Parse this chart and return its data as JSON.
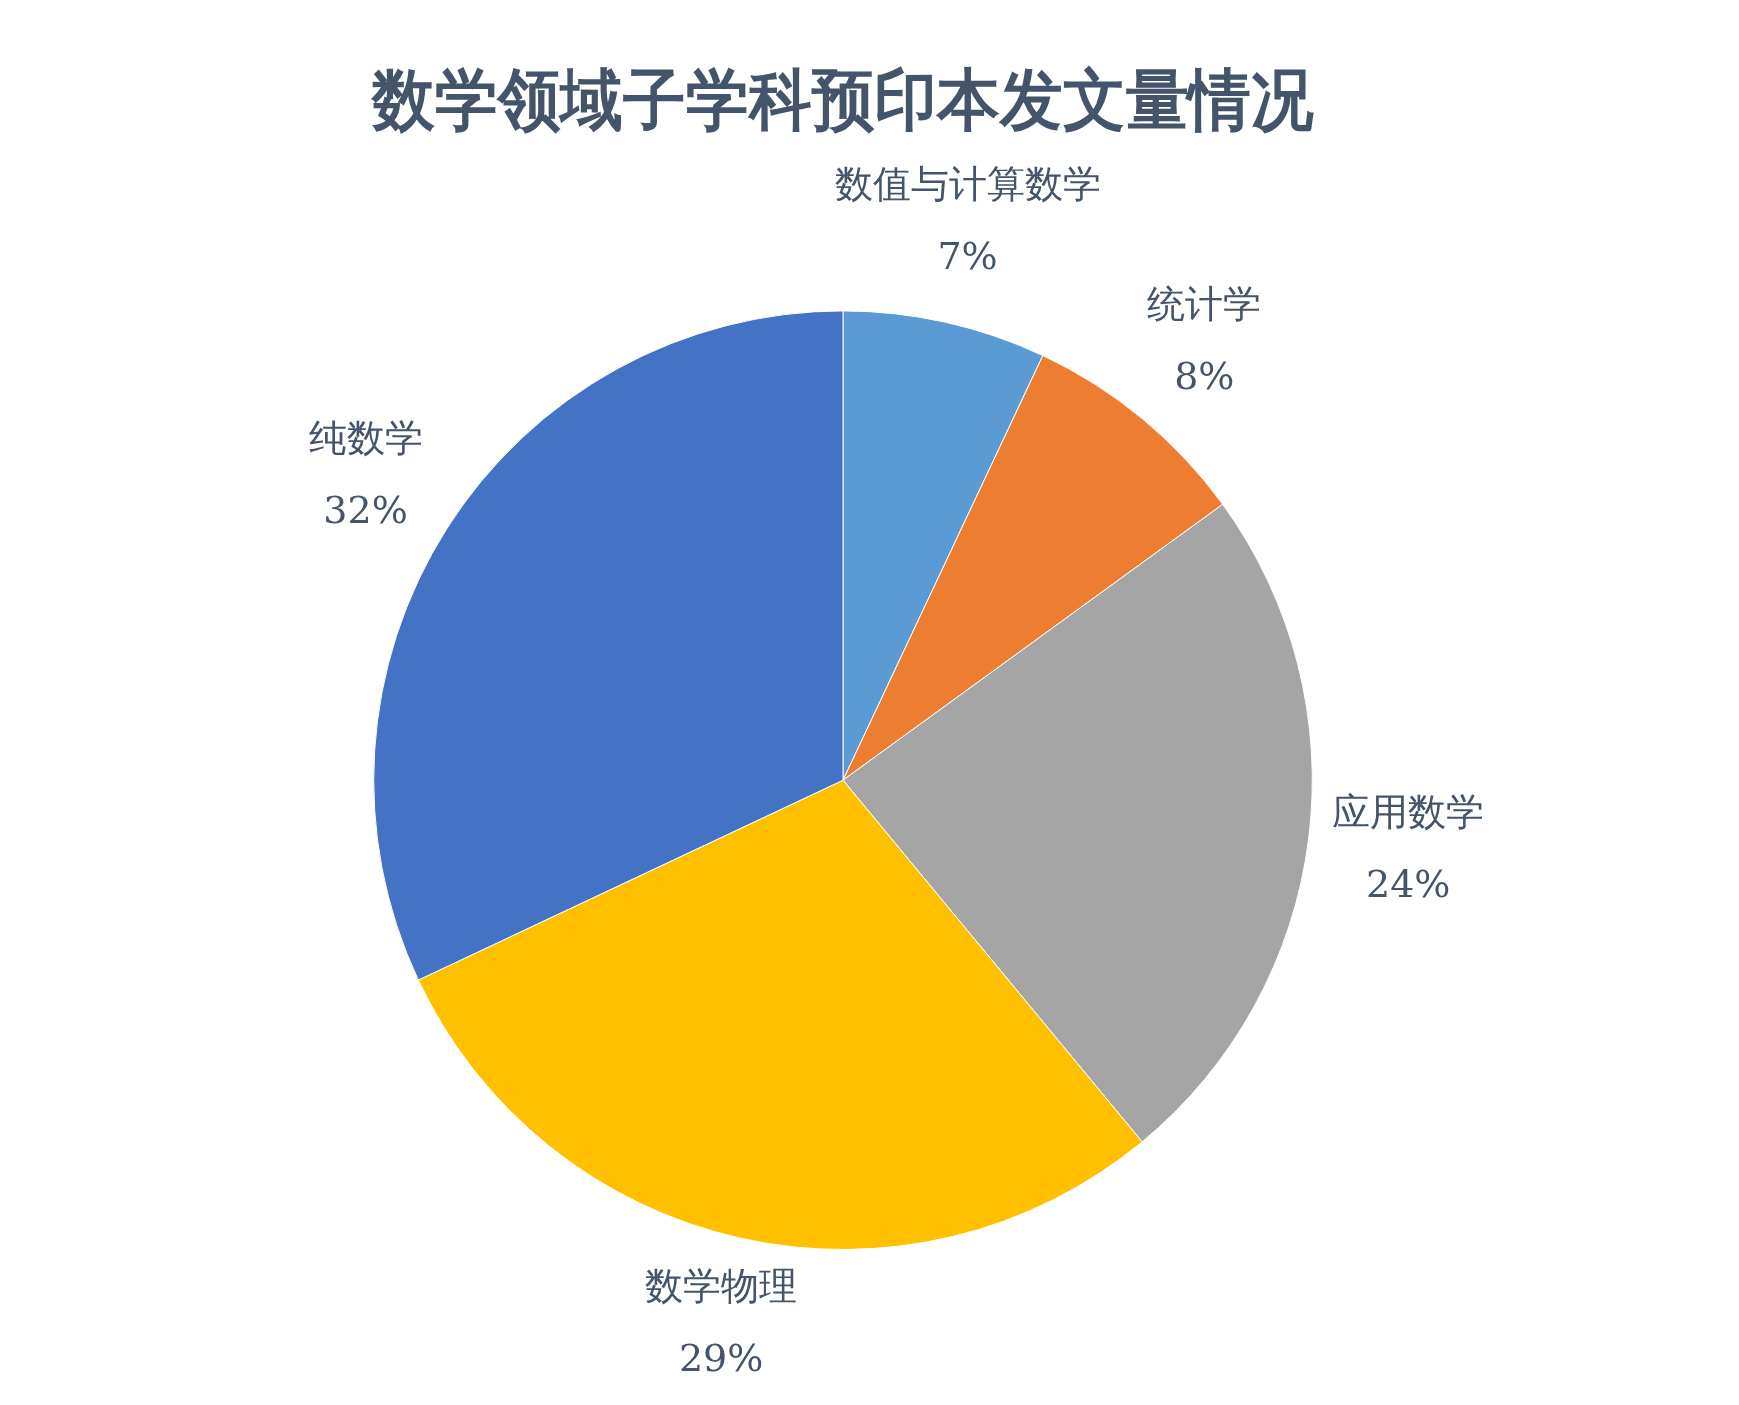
{
  "chart_data": {
    "type": "pie",
    "title": "数学领域子学科预印本发文量情况",
    "categories": [
      "数值与计算数学",
      "统计学",
      "应用数学",
      "数学物理",
      "纯数学"
    ],
    "values": [
      7,
      8,
      24,
      29,
      32
    ],
    "value_labels": [
      "7%",
      "8%",
      "24%",
      "29%",
      "32%"
    ],
    "colors": [
      "#5b9bd5",
      "#ed7d31",
      "#a5a5a5",
      "#ffc000",
      "#4472c4"
    ],
    "legend": false
  }
}
